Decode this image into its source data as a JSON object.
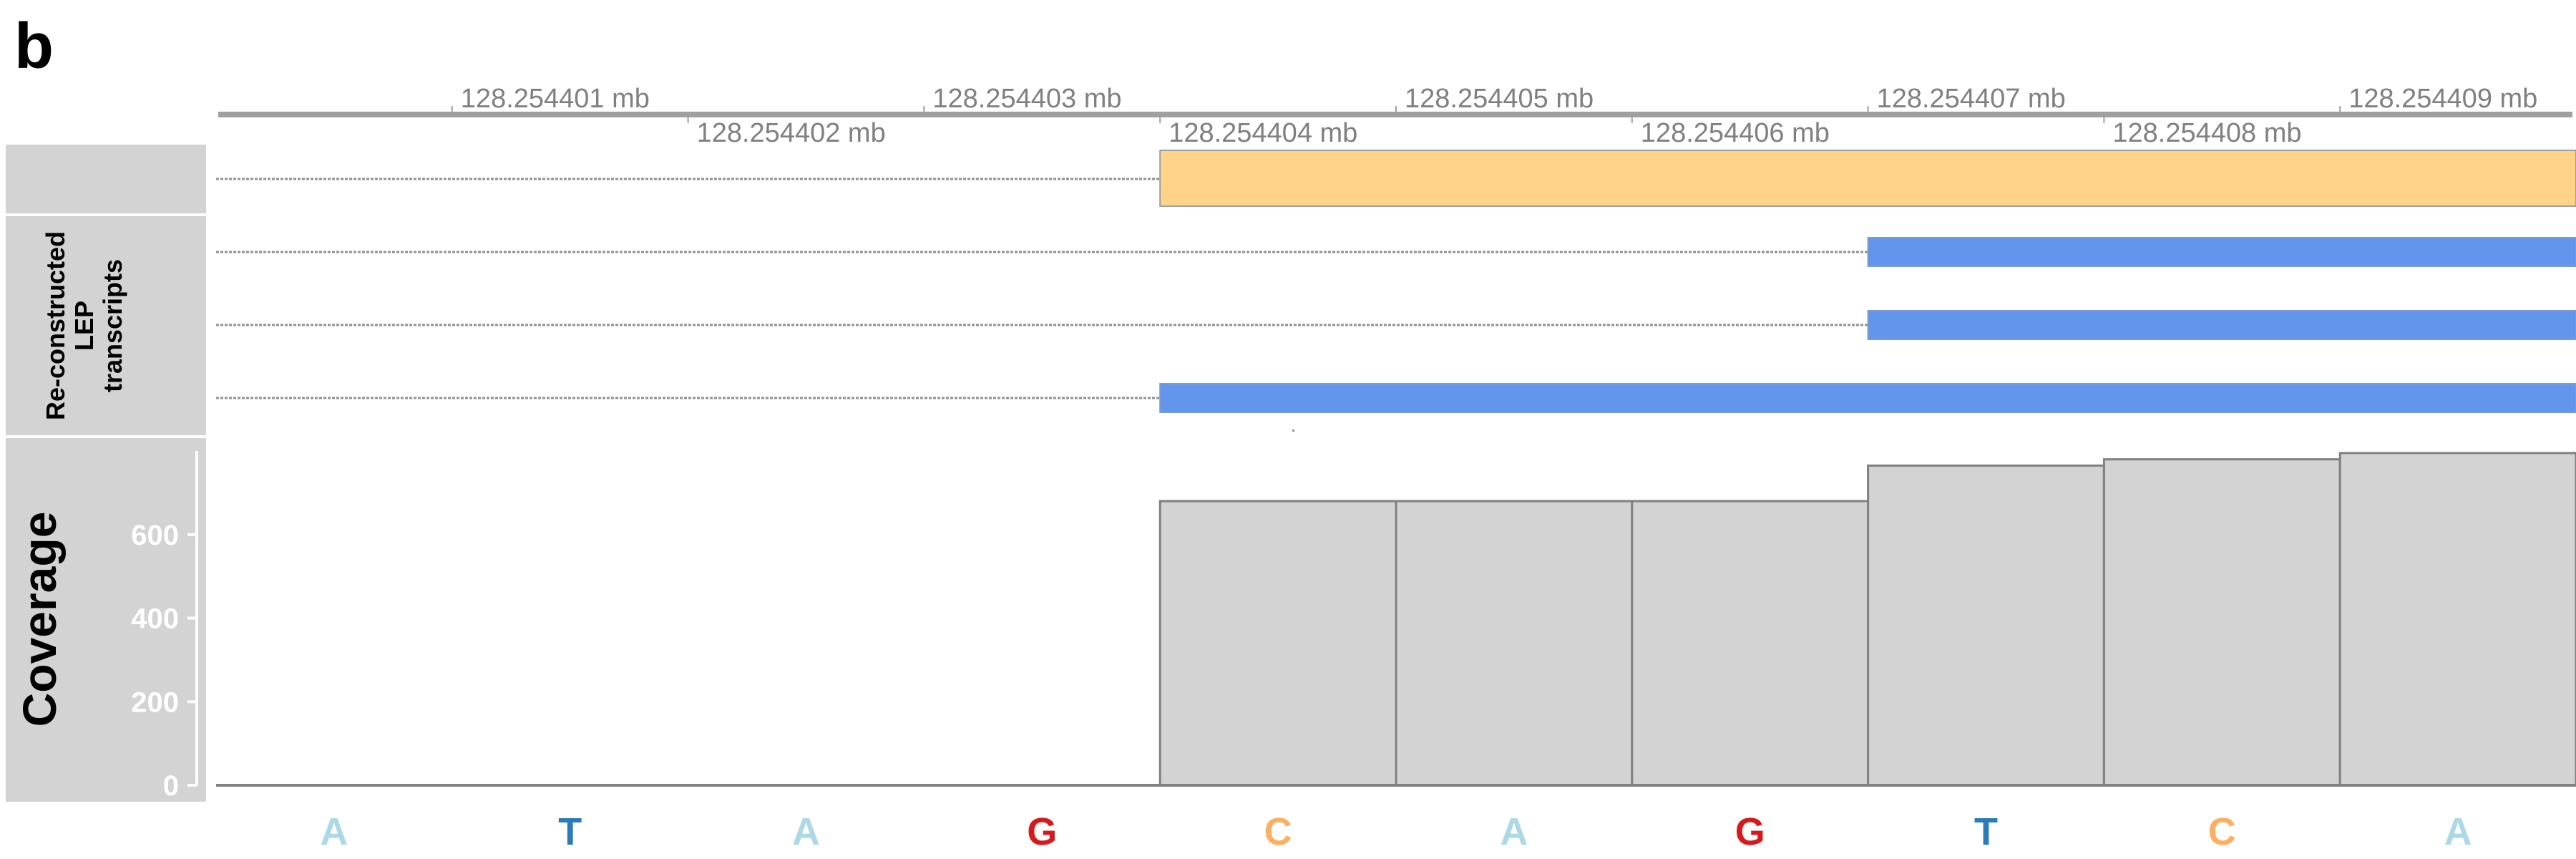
{
  "panel_label": "b",
  "axis": {
    "unit": "mb",
    "ticks": [
      {
        "label": "128.254401 mb",
        "row": "top"
      },
      {
        "label": "128.254402 mb",
        "row": "bottom"
      },
      {
        "label": "128.254403 mb",
        "row": "top"
      },
      {
        "label": "128.254404 mb",
        "row": "bottom"
      },
      {
        "label": "128.254405 mb",
        "row": "top"
      },
      {
        "label": "128.254406 mb",
        "row": "bottom"
      },
      {
        "label": "128.254407 mb",
        "row": "top"
      },
      {
        "label": "128.254408 mb",
        "row": "bottom"
      },
      {
        "label": "128.254409 mb",
        "row": "top"
      }
    ]
  },
  "tracks": {
    "reference": {
      "feature": {
        "start_base": 5,
        "end_base": 10,
        "color": "#FFD48A"
      }
    },
    "transcripts": {
      "title_lines": [
        "Re-constructed",
        "LEP",
        "transcripts"
      ],
      "features": [
        {
          "start_base": 8,
          "end_base": 10,
          "color": "#6495ED"
        },
        {
          "start_base": 8,
          "end_base": 10,
          "color": "#6495ED"
        },
        {
          "start_base": 5,
          "end_base": 10,
          "color": "#6495ED"
        }
      ]
    },
    "coverage": {
      "title": "Coverage",
      "yticks": [
        "0",
        "200",
        "400",
        "600"
      ],
      "ytick_values": [
        0,
        200,
        400,
        600
      ],
      "ylim": [
        0,
        800
      ]
    }
  },
  "chart_data": {
    "type": "bar",
    "categories": [
      "A",
      "T",
      "A",
      "G",
      "C",
      "A",
      "G",
      "T",
      "C",
      "A"
    ],
    "values": [
      0,
      0,
      0,
      0,
      680,
      680,
      680,
      765,
      780,
      795
    ],
    "ylabel": "Coverage",
    "ylim": [
      0,
      800
    ]
  },
  "sequence": [
    {
      "base": "A",
      "color": "#ADD8E6"
    },
    {
      "base": "T",
      "color": "#2B7BBA"
    },
    {
      "base": "A",
      "color": "#ADD8E6"
    },
    {
      "base": "G",
      "color": "#D7191C"
    },
    {
      "base": "C",
      "color": "#FDAE61"
    },
    {
      "base": "A",
      "color": "#ADD8E6"
    },
    {
      "base": "G",
      "color": "#D7191C"
    },
    {
      "base": "T",
      "color": "#2B7BBA"
    },
    {
      "base": "C",
      "color": "#FDAE61"
    },
    {
      "base": "A",
      "color": "#ADD8E6"
    }
  ],
  "colors": {
    "panel_bg": "#D3D3D3",
    "axis": "#A0A0A0",
    "bar_fill": "#D3D3D3",
    "bar_stroke": "#808080"
  }
}
